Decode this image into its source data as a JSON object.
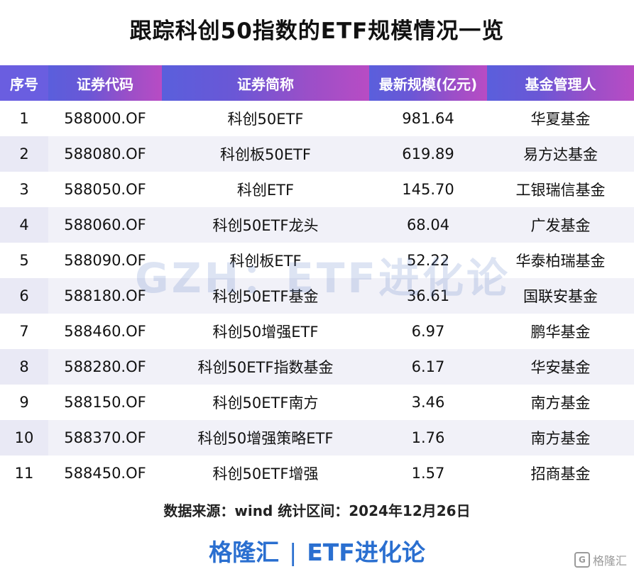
{
  "title": "跟踪科创50指数的ETF规模情况一览",
  "headers": [
    "序号",
    "证券代码",
    "证券简称",
    "最新规模(亿元)",
    "基金管理人"
  ],
  "rows": [
    {
      "no": "1",
      "code": "588000.OF",
      "name": "科创50ETF",
      "size": "981.64",
      "manager": "华夏基金"
    },
    {
      "no": "2",
      "code": "588080.OF",
      "name": "科创板50ETF",
      "size": "619.89",
      "manager": "易方达基金"
    },
    {
      "no": "3",
      "code": "588050.OF",
      "name": "科创ETF",
      "size": "145.70",
      "manager": "工银瑞信基金"
    },
    {
      "no": "4",
      "code": "588060.OF",
      "name": "科创50ETF龙头",
      "size": "68.04",
      "manager": "广发基金"
    },
    {
      "no": "5",
      "code": "588090.OF",
      "name": "科创板ETF",
      "size": "52.22",
      "manager": "华泰柏瑞基金"
    },
    {
      "no": "6",
      "code": "588180.OF",
      "name": "科创50ETF基金",
      "size": "36.61",
      "manager": "国联安基金"
    },
    {
      "no": "7",
      "code": "588460.OF",
      "name": "科创50增强ETF",
      "size": "6.97",
      "manager": "鹏华基金"
    },
    {
      "no": "8",
      "code": "588280.OF",
      "name": "科创50ETF指数基金",
      "size": "6.17",
      "manager": "华安基金"
    },
    {
      "no": "9",
      "code": "588150.OF",
      "name": "科创50ETF南方",
      "size": "3.46",
      "manager": "南方基金"
    },
    {
      "no": "10",
      "code": "588370.OF",
      "name": "科创50增强策略ETF",
      "size": "1.76",
      "manager": "南方基金"
    },
    {
      "no": "11",
      "code": "588450.OF",
      "name": "科创50ETF增强",
      "size": "1.57",
      "manager": "招商基金"
    }
  ],
  "watermark": "GZH：ETF进化论",
  "source": "数据来源：wind 统计区间：2024年12月26日",
  "brand": {
    "left": "格隆汇",
    "separator": "|",
    "right": "ETF进化论"
  },
  "corner": {
    "icon_letter": "G",
    "text": "格隆汇"
  },
  "colors": {
    "header_start": "#5a5fdc",
    "header_end": "#b84cc4",
    "brand": "#2a6fd0",
    "stripe": "#f1f1f8"
  }
}
